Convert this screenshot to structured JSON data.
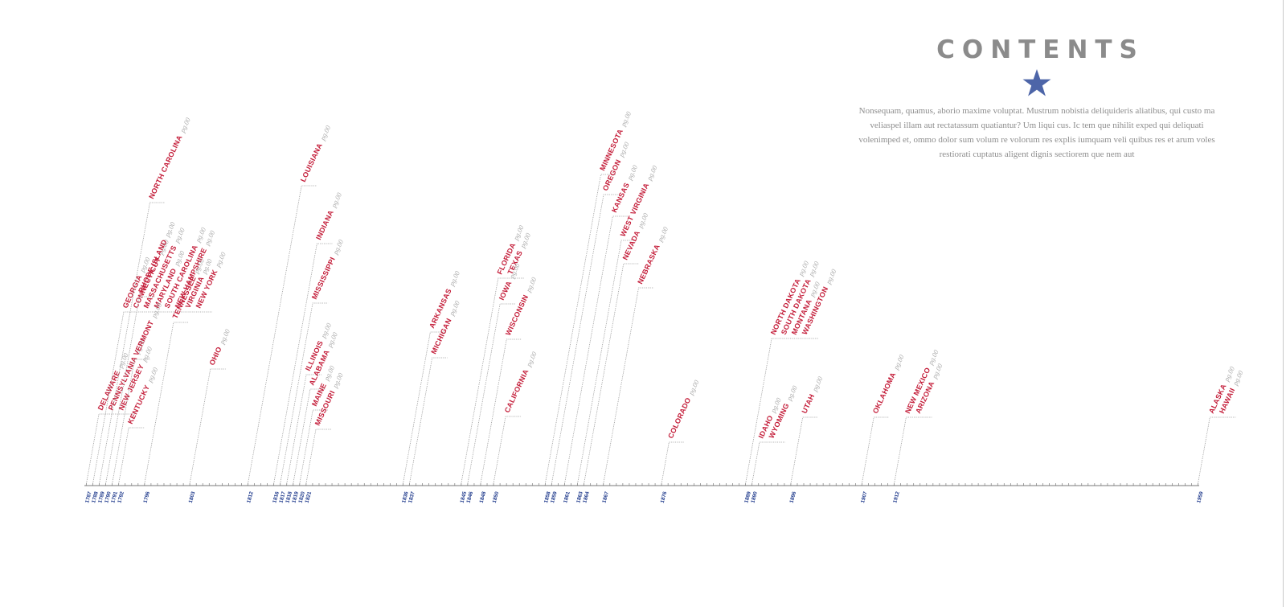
{
  "header": {
    "title": "CONTENTS",
    "intro": "Nonsequam, quamus, aborio maxime voluptat. Mustrum nobistia deliquideris aliatibus, qui custo ma veliaspel illam aut rectatassum quatiantur? Um liqui cus. Ic tem que nihilit exped qui deliquati volenimped et, ommo dolor sum volum re volorum res explis iumquam veli quibus res et arum voles restiorati cuptatus aligent dignis sectiorem que nem aut"
  },
  "colors": {
    "state": "#c41e3a",
    "page": "#a8a8a8",
    "year": "#1f3a8c",
    "line": "#9a9a9a",
    "star": "#4d65a8",
    "title": "#8b8b8b"
  },
  "page_label": "pg.00",
  "timeline": {
    "start_year": 1787,
    "end_year": 1959,
    "year_labels": [
      "1787",
      "1788",
      "1789",
      "1790",
      "1791",
      "1792",
      "1796",
      "1803",
      "1812",
      "1816",
      "1817",
      "1818",
      "1819",
      "1820",
      "1821",
      "1836",
      "1837",
      "1845",
      "1846",
      "1848",
      "1850",
      "1858",
      "1859",
      "1861",
      "1863",
      "1864",
      "1867",
      "1876",
      "1889",
      "1890",
      "1896",
      "1907",
      "1912",
      "1959"
    ]
  },
  "states": [
    {
      "name": "DELAWARE",
      "year": 1787
    },
    {
      "name": "PENNSYLVANIA",
      "year": 1787
    },
    {
      "name": "NEW JERSEY",
      "year": 1787
    },
    {
      "name": "GEORGIA",
      "year": 1788
    },
    {
      "name": "CONNECTICUT",
      "year": 1788
    },
    {
      "name": "MASSACHUSETTS",
      "year": 1788
    },
    {
      "name": "MARYLAND",
      "year": 1788
    },
    {
      "name": "SOUTH CAROLINA",
      "year": 1788
    },
    {
      "name": "NEW HAMPSHIRE",
      "year": 1788
    },
    {
      "name": "VIRGINIA",
      "year": 1788
    },
    {
      "name": "NEW YORK",
      "year": 1788
    },
    {
      "name": "NORTH CAROLINA",
      "year": 1789
    },
    {
      "name": "RHODE ISLAND",
      "year": 1790
    },
    {
      "name": "VERMONT",
      "year": 1791
    },
    {
      "name": "KENTUCKY",
      "year": 1792
    },
    {
      "name": "TENNESSEE",
      "year": 1796
    },
    {
      "name": "OHIO",
      "year": 1803
    },
    {
      "name": "LOUISIANA",
      "year": 1812
    },
    {
      "name": "INDIANA",
      "year": 1816
    },
    {
      "name": "MISSISSIPPI",
      "year": 1817
    },
    {
      "name": "ILLINOIS",
      "year": 1818
    },
    {
      "name": "ALABAMA",
      "year": 1819
    },
    {
      "name": "MAINE",
      "year": 1820
    },
    {
      "name": "MISSOURI",
      "year": 1821
    },
    {
      "name": "ARKANSAS",
      "year": 1836
    },
    {
      "name": "MICHIGAN",
      "year": 1837
    },
    {
      "name": "FLORIDA",
      "year": 1845
    },
    {
      "name": "TEXAS",
      "year": 1845
    },
    {
      "name": "IOWA",
      "year": 1846
    },
    {
      "name": "WISCONSIN",
      "year": 1848
    },
    {
      "name": "CALIFORNIA",
      "year": 1850
    },
    {
      "name": "MINNESOTA",
      "year": 1858
    },
    {
      "name": "OREGON",
      "year": 1859
    },
    {
      "name": "KANSAS",
      "year": 1861
    },
    {
      "name": "WEST VIRGINIA",
      "year": 1863
    },
    {
      "name": "NEVADA",
      "year": 1864
    },
    {
      "name": "NEBRASKA",
      "year": 1867
    },
    {
      "name": "COLORADO",
      "year": 1876
    },
    {
      "name": "NORTH DAKOTA",
      "year": 1889
    },
    {
      "name": "SOUTH DAKOTA",
      "year": 1889
    },
    {
      "name": "MONTANA",
      "year": 1889
    },
    {
      "name": "WASHINGTON",
      "year": 1889
    },
    {
      "name": "IDAHO",
      "year": 1890
    },
    {
      "name": "WYOMING",
      "year": 1890
    },
    {
      "name": "UTAH",
      "year": 1896
    },
    {
      "name": "OKLAHOMA",
      "year": 1907
    },
    {
      "name": "NEW MEXICO",
      "year": 1912
    },
    {
      "name": "ARIZONA",
      "year": 1912
    },
    {
      "name": "ALASKA",
      "year": 1959
    },
    {
      "name": "HAWAII",
      "year": 1959
    }
  ]
}
